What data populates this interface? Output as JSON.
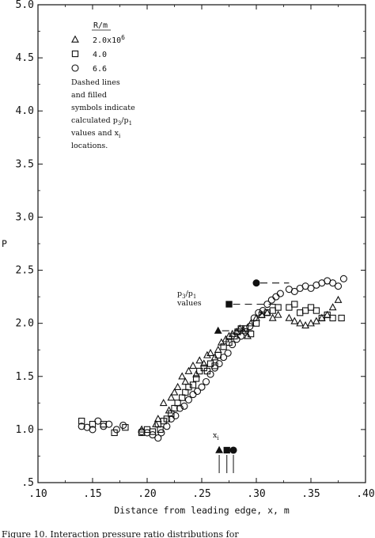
{
  "chart_data": {
    "type": "scatter",
    "title": "",
    "xlabel": "Distance from leading edge, x, m",
    "ylabel": "P",
    "xlim": [
      0.1,
      0.4
    ],
    "ylim": [
      0.5,
      5.0
    ],
    "x_ticks": [
      ".10",
      ".15",
      ".20",
      ".25",
      ".30",
      ".35",
      ".40"
    ],
    "y_ticks": [
      ".5",
      "1.0",
      "1.5",
      "2.0",
      "2.5",
      "3.0",
      "3.5",
      "4.0",
      "4.5",
      "5.0"
    ],
    "grid": false,
    "legend": {
      "placement": "top-left",
      "header": "R/m",
      "entries": [
        {
          "marker": "triangle",
          "text": "2.0x10^6"
        },
        {
          "marker": "square",
          "text": "4.0"
        },
        {
          "marker": "circle",
          "text": "6.6"
        }
      ],
      "note": [
        "Dashed lines",
        "and filled",
        "symbols indicate",
        "calculated p3/p1",
        "values and xi",
        "locations."
      ]
    },
    "series": [
      {
        "name": "2.0x10^6",
        "marker": "triangle",
        "x": [
          0.195,
          0.208,
          0.21,
          0.215,
          0.22,
          0.222,
          0.225,
          0.228,
          0.232,
          0.235,
          0.238,
          0.242,
          0.245,
          0.248,
          0.252,
          0.255,
          0.258,
          0.262,
          0.265,
          0.268,
          0.272,
          0.275,
          0.278,
          0.282,
          0.285,
          0.288,
          0.292,
          0.295,
          0.3,
          0.305,
          0.31,
          0.315,
          0.32,
          0.33,
          0.335,
          0.34,
          0.345,
          0.35,
          0.355,
          0.36,
          0.365,
          0.37,
          0.375
        ],
        "y": [
          1.0,
          1.05,
          1.1,
          1.25,
          1.18,
          1.3,
          1.35,
          1.4,
          1.5,
          1.45,
          1.55,
          1.6,
          1.52,
          1.65,
          1.62,
          1.7,
          1.72,
          1.68,
          1.75,
          1.82,
          1.85,
          1.88,
          1.9,
          1.92,
          1.95,
          1.93,
          1.88,
          2.0,
          2.05,
          2.08,
          2.1,
          2.05,
          2.08,
          2.05,
          2.02,
          2.0,
          1.98,
          2.0,
          2.02,
          2.05,
          2.08,
          2.15,
          2.22
        ]
      },
      {
        "name": "4.0",
        "marker": "square",
        "x": [
          0.14,
          0.15,
          0.16,
          0.17,
          0.18,
          0.195,
          0.2,
          0.205,
          0.21,
          0.212,
          0.215,
          0.218,
          0.222,
          0.225,
          0.228,
          0.232,
          0.235,
          0.238,
          0.242,
          0.245,
          0.248,
          0.252,
          0.255,
          0.258,
          0.262,
          0.265,
          0.27,
          0.275,
          0.28,
          0.283,
          0.286,
          0.29,
          0.295,
          0.3,
          0.305,
          0.31,
          0.315,
          0.32,
          0.33,
          0.335,
          0.34,
          0.345,
          0.35,
          0.355,
          0.36,
          0.365,
          0.37,
          0.378
        ],
        "y": [
          1.08,
          1.05,
          1.05,
          0.97,
          1.02,
          0.97,
          1.0,
          0.98,
          1.05,
          1.0,
          1.08,
          1.1,
          1.15,
          1.2,
          1.25,
          1.3,
          1.35,
          1.4,
          1.42,
          1.48,
          1.55,
          1.58,
          1.55,
          1.62,
          1.6,
          1.7,
          1.78,
          1.82,
          1.88,
          1.92,
          1.95,
          1.95,
          1.9,
          2.0,
          2.08,
          2.1,
          2.12,
          2.15,
          2.15,
          2.18,
          2.1,
          2.12,
          2.15,
          2.12,
          2.05,
          2.08,
          2.05,
          2.05
        ]
      },
      {
        "name": "6.6",
        "marker": "circle",
        "x": [
          0.14,
          0.145,
          0.15,
          0.155,
          0.16,
          0.165,
          0.172,
          0.178,
          0.195,
          0.2,
          0.205,
          0.21,
          0.213,
          0.218,
          0.222,
          0.226,
          0.23,
          0.234,
          0.238,
          0.242,
          0.246,
          0.25,
          0.254,
          0.258,
          0.262,
          0.266,
          0.27,
          0.274,
          0.278,
          0.282,
          0.286,
          0.29,
          0.294,
          0.298,
          0.302,
          0.306,
          0.31,
          0.314,
          0.318,
          0.322,
          0.33,
          0.335,
          0.34,
          0.345,
          0.35,
          0.355,
          0.36,
          0.365,
          0.37,
          0.375,
          0.38
        ],
        "y": [
          1.03,
          1.02,
          1.0,
          1.08,
          1.03,
          1.05,
          1.0,
          1.04,
          0.98,
          0.97,
          0.95,
          0.92,
          0.97,
          1.03,
          1.1,
          1.13,
          1.2,
          1.22,
          1.28,
          1.33,
          1.36,
          1.4,
          1.45,
          1.52,
          1.58,
          1.62,
          1.68,
          1.72,
          1.8,
          1.85,
          1.88,
          1.92,
          1.97,
          2.05,
          2.1,
          2.12,
          2.18,
          2.22,
          2.25,
          2.28,
          2.32,
          2.3,
          2.33,
          2.35,
          2.33,
          2.36,
          2.38,
          2.4,
          2.38,
          2.35,
          2.42
        ]
      }
    ],
    "calculated": [
      {
        "marker": "triangle",
        "x_from": 0.265,
        "x_to": 0.3,
        "y": 1.93
      },
      {
        "marker": "square",
        "x_from": 0.275,
        "x_to": 0.32,
        "y": 2.18
      },
      {
        "marker": "circle",
        "x_from": 0.3,
        "x_to": 0.33,
        "y": 2.38
      }
    ],
    "xi": {
      "label": "xi",
      "markers": [
        {
          "marker": "triangle",
          "x": 0.266
        },
        {
          "marker": "square",
          "x": 0.273
        },
        {
          "marker": "circle",
          "x": 0.279
        }
      ]
    },
    "p_label": "p3/p1",
    "values_label": "values"
  },
  "caption": "Figure 10.   Interaction pressure ratio distributions for"
}
